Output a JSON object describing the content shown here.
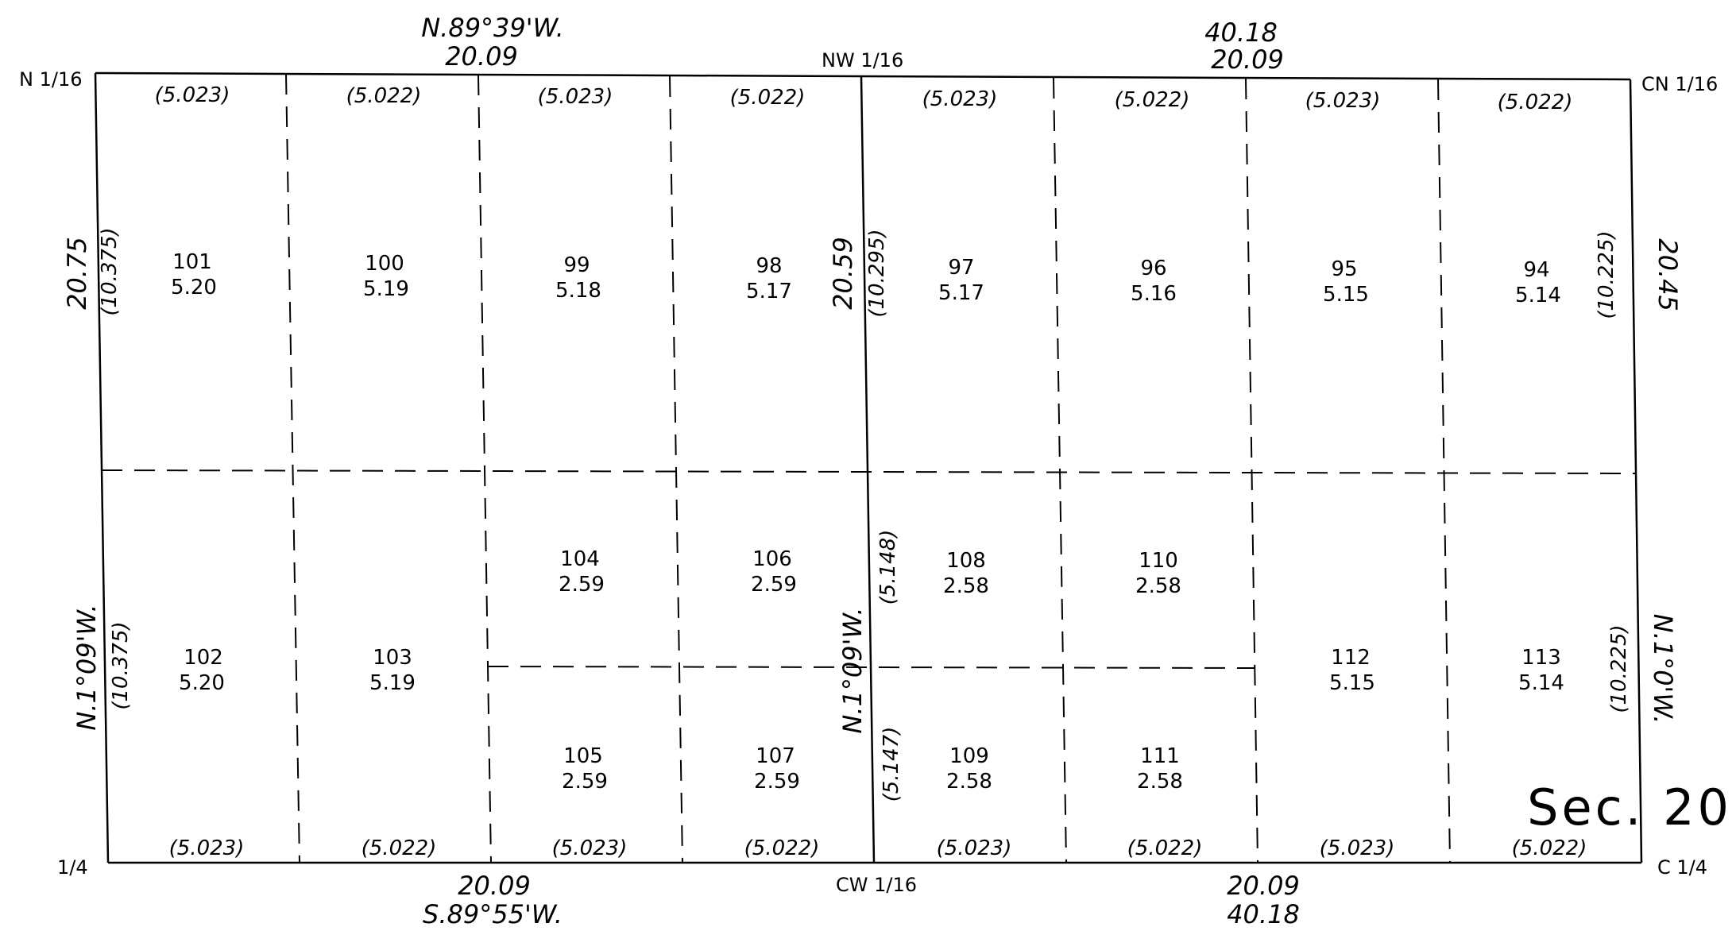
{
  "corners": {
    "n16": "N 1/16",
    "nw16": "NW 1/16",
    "cn16": "CN 1/16",
    "q4": "1/4",
    "cw16": "CW 1/16",
    "c4": "C 1/4"
  },
  "bearings": {
    "north_bearing": "N.89°39'W.",
    "north_dist_left": "20.09",
    "north_dist_right_total": "40.18",
    "north_dist_right": "20.09",
    "south_dist_left": "20.09",
    "south_bearing": "S.89°55'W.",
    "south_dist_right": "20.09",
    "south_dist_right_total": "40.18",
    "west_dist": "20.75",
    "west_bearing": "N.1°09'W.",
    "mid_dist": "20.59",
    "mid_bearing": "N.1°09'W.",
    "east_dist": "20.45",
    "east_bearing": "N.1°0'W."
  },
  "subdivisions": {
    "top": [
      "(5.023)",
      "(5.022)",
      "(5.023)",
      "(5.022)",
      "(5.023)",
      "(5.022)",
      "(5.023)",
      "(5.022)"
    ],
    "bottom": [
      "(5.023)",
      "(5.022)",
      "(5.023)",
      "(5.022)",
      "(5.023)",
      "(5.022)",
      "(5.023)",
      "(5.022)"
    ],
    "west_upper": "(10.375)",
    "west_lower": "(10.375)",
    "mid_upper": "(10.295)",
    "mid_lower_a": "(5.148)",
    "mid_lower_b": "(5.147)",
    "east_upper": "(10.225)",
    "east_lower": "(10.225)"
  },
  "lots": [
    {
      "num": "101",
      "area": "5.20"
    },
    {
      "num": "100",
      "area": "5.19"
    },
    {
      "num": "99",
      "area": "5.18"
    },
    {
      "num": "98",
      "area": "5.17"
    },
    {
      "num": "97",
      "area": "5.17"
    },
    {
      "num": "96",
      "area": "5.16"
    },
    {
      "num": "95",
      "area": "5.15"
    },
    {
      "num": "94",
      "area": "5.14"
    },
    {
      "num": "102",
      "area": "5.20"
    },
    {
      "num": "103",
      "area": "5.19"
    },
    {
      "num": "104",
      "area": "2.59"
    },
    {
      "num": "105",
      "area": "2.59"
    },
    {
      "num": "106",
      "area": "2.59"
    },
    {
      "num": "107",
      "area": "2.59"
    },
    {
      "num": "108",
      "area": "2.58"
    },
    {
      "num": "109",
      "area": "2.58"
    },
    {
      "num": "110",
      "area": "2.58"
    },
    {
      "num": "111",
      "area": "2.58"
    },
    {
      "num": "112",
      "area": "5.15"
    },
    {
      "num": "113",
      "area": "5.14"
    }
  ],
  "section_label": "Sec. 20"
}
